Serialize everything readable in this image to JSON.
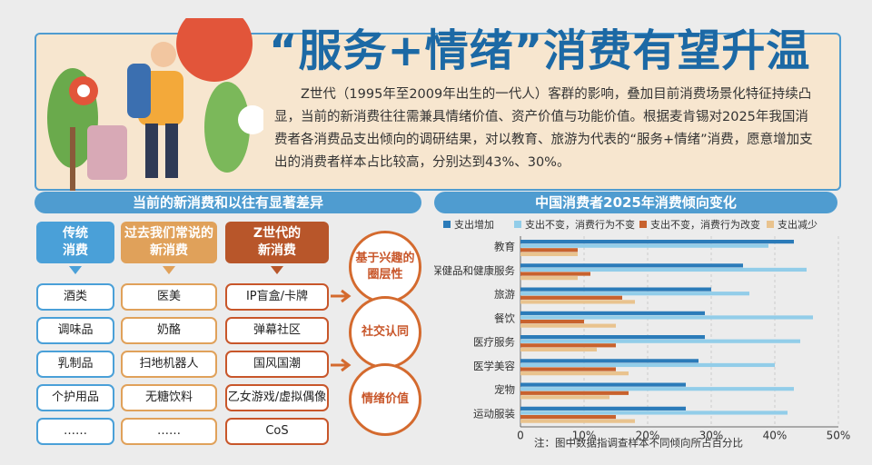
{
  "header": {
    "title": "“服务+情绪”消费有望升温",
    "intro": "Z世代（1995年至2009年出生的一代人）客群的影响，叠加目前消费场景化特征持续凸显，当前的新消费往往需兼具情绪价值、资产价值与功能价值。根据麦肯锡对2025年我国消费者各消费品支出倾向的调研结果，对以教育、旅游为代表的“服务+情绪”消费，愿意增加支出的消费者样本占比较高，分别达到43%、30%。"
  },
  "comparison": {
    "title": "当前的新消费和以往有显著差异",
    "columns": [
      {
        "header_lines": [
          "传统",
          "消费"
        ],
        "items": [
          "酒类",
          "调味品",
          "乳制品",
          "个护用品",
          "……"
        ]
      },
      {
        "header_lines": [
          "过去我们常说的",
          "新消费"
        ],
        "items": [
          "医美",
          "奶酪",
          "扫地机器人",
          "无糖饮料",
          "……"
        ]
      },
      {
        "header_lines": [
          "Z世代的",
          "新消费"
        ],
        "items": [
          "IP盲盒/卡牌",
          "弹幕社区",
          "国风国潮",
          "乙女游戏/虚拟偶像",
          "CoS"
        ]
      }
    ],
    "traits": [
      [
        "基于兴趣的",
        "圈层性"
      ],
      [
        "社交认同"
      ],
      [
        "情绪价值"
      ]
    ]
  },
  "chart_data": {
    "type": "hbar",
    "title": "中国消费者2025年消费倾向变化",
    "categories": [
      "教育",
      "保健品和健康服务",
      "旅游",
      "餐饮",
      "医疗服务",
      "医学美容",
      "宠物",
      "运动服装"
    ],
    "series": [
      {
        "name": "支出增加",
        "color": "#2b7bb9",
        "values": [
          43,
          35,
          30,
          29,
          29,
          28,
          26,
          26
        ]
      },
      {
        "name": "支出不变，消费行为不变",
        "color": "#92cde9",
        "values": [
          39,
          45,
          36,
          46,
          44,
          40,
          43,
          42
        ]
      },
      {
        "name": "支出不变，消费行为改变",
        "color": "#c8622e",
        "values": [
          9,
          11,
          16,
          10,
          15,
          15,
          17,
          15
        ]
      },
      {
        "name": "支出减少",
        "color": "#e9c38e",
        "values": [
          9,
          9,
          18,
          15,
          12,
          17,
          14,
          18
        ]
      }
    ],
    "xlim": [
      0,
      50
    ],
    "xticks": [
      0,
      {
        "value": 10,
        "label": "10%"
      },
      {
        "value": 20,
        "label": "20%"
      },
      {
        "value": 30,
        "label": "30%"
      },
      {
        "value": 40,
        "label": "40%"
      },
      {
        "value": 50,
        "label": "50%"
      }
    ],
    "grid": true,
    "note": "注：图中数据指调查样本不同倾向所占百分比"
  }
}
